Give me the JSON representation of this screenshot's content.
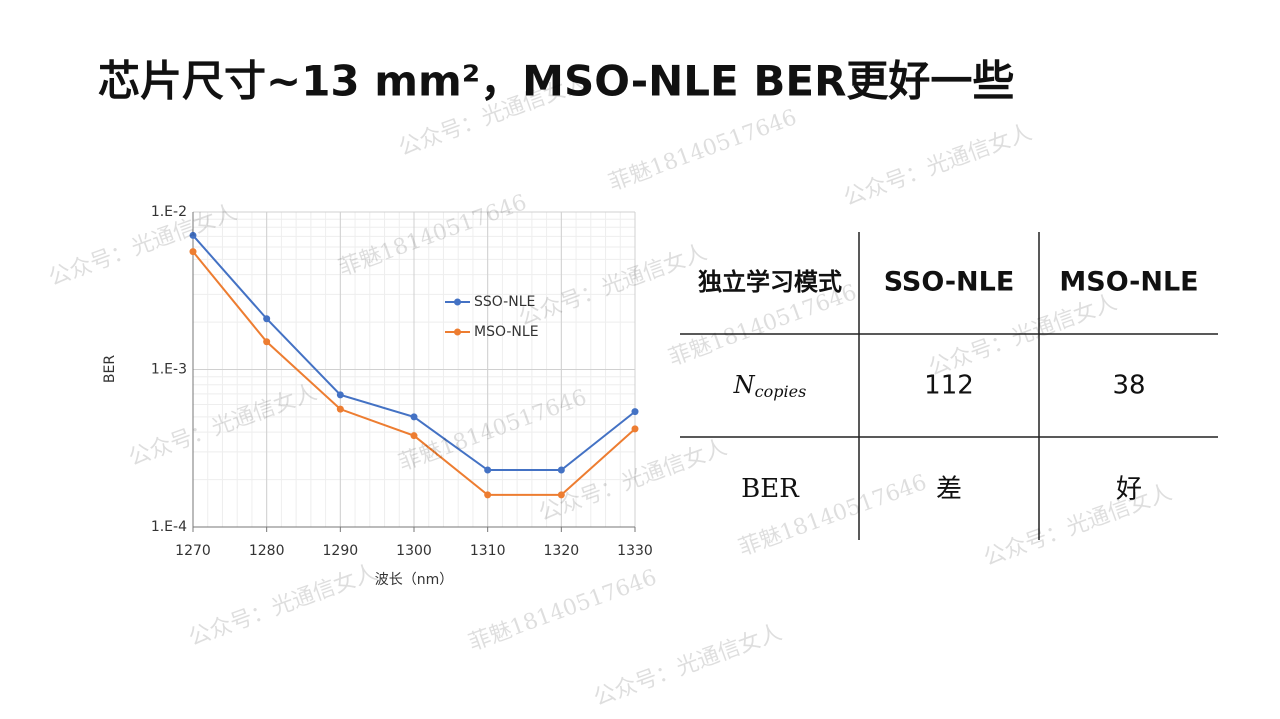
{
  "title": "芯片尺寸~13 mm²，MSO-NLE BER更好一些",
  "chart_data": {
    "type": "line",
    "log_scale_y": true,
    "grid": true,
    "x_label": "波长（nm）",
    "y_label": "BER",
    "x": [
      1270,
      1280,
      1290,
      1300,
      1310,
      1320,
      1330
    ],
    "xlim": [
      1270,
      1330
    ],
    "xticks": [
      1270,
      1280,
      1290,
      1300,
      1310,
      1320,
      1330
    ],
    "ylim": [
      0.0001,
      0.01
    ],
    "yticks": [
      {
        "value": 0.0001,
        "label": "1.E-4"
      },
      {
        "value": 0.001,
        "label": "1.E-3"
      },
      {
        "value": 0.01,
        "label": "1.E-2"
      }
    ],
    "legend_position": "right",
    "series": [
      {
        "name": "SSO-NLE",
        "color": "#4472c4",
        "values": [
          0.0071,
          0.0021,
          0.00069,
          0.0005,
          0.00023,
          0.00023,
          0.00054
        ]
      },
      {
        "name": "MSO-NLE",
        "color": "#ed7d31",
        "values": [
          0.0056,
          0.0015,
          0.00056,
          0.00038,
          0.00016,
          0.00016,
          0.00042
        ]
      }
    ]
  },
  "table": {
    "header": [
      "独立学习模式",
      "SSO-NLE",
      "MSO-NLE"
    ],
    "rows": [
      [
        {
          "base": "N",
          "subscript": "copies"
        },
        "112",
        "38"
      ],
      [
        "BER",
        "差",
        "好"
      ]
    ]
  },
  "watermarks": [
    "公众号：光通信女人",
    "菲魅18140517646"
  ]
}
